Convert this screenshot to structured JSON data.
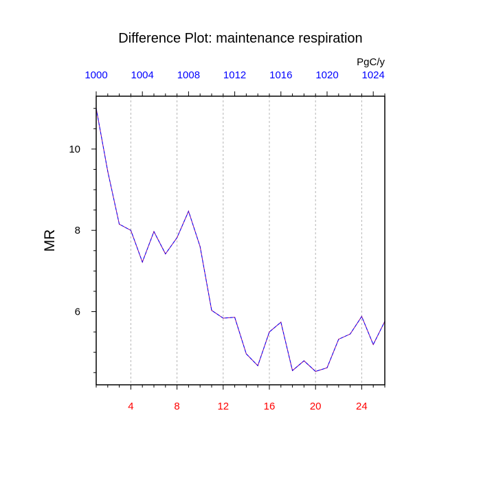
{
  "chart_data": {
    "type": "line",
    "title": "Difference Plot: maintenance respiration",
    "units": "PgC/y",
    "ylabel": "MR",
    "xlabel": "",
    "xlim": [
      1,
      26
    ],
    "ylim": [
      4.2,
      11.3
    ],
    "grid": "vertical dashed",
    "bottom_axis": {
      "color": "#ff0000",
      "ticks": [
        4,
        8,
        12,
        16,
        20,
        24
      ],
      "labels": [
        "4",
        "8",
        "12",
        "16",
        "20",
        "24"
      ]
    },
    "top_axis": {
      "color": "#0000ff",
      "ticks": [
        1,
        5,
        9,
        13,
        17,
        21,
        25
      ],
      "labels": [
        "1000",
        "1004",
        "1008",
        "1012",
        "1016",
        "1020",
        "1024"
      ]
    },
    "y_axis": {
      "ticks": [
        6,
        8,
        10
      ],
      "labels": [
        "6",
        "8",
        "10"
      ],
      "minor_ticks": [
        4.5,
        5,
        5.5,
        6.5,
        7,
        7.5,
        8.5,
        9,
        9.5,
        10.5,
        11
      ]
    },
    "series": [
      {
        "color": "#8b008b",
        "dash_color": "#0000ff",
        "style": "dashed",
        "x": [
          1,
          2,
          3,
          4,
          5,
          6,
          7,
          8,
          9,
          10,
          11,
          12,
          13,
          14,
          15,
          16,
          17,
          18,
          19,
          20,
          21,
          22,
          23,
          24,
          25,
          26
        ],
        "values": [
          11.0,
          9.45,
          8.15,
          8.0,
          7.22,
          7.97,
          7.42,
          7.82,
          8.47,
          7.6,
          6.03,
          5.84,
          5.86,
          4.96,
          4.67,
          5.5,
          5.74,
          4.55,
          4.79,
          4.53,
          4.62,
          5.32,
          5.45,
          5.88,
          5.19,
          5.76
        ]
      }
    ]
  }
}
